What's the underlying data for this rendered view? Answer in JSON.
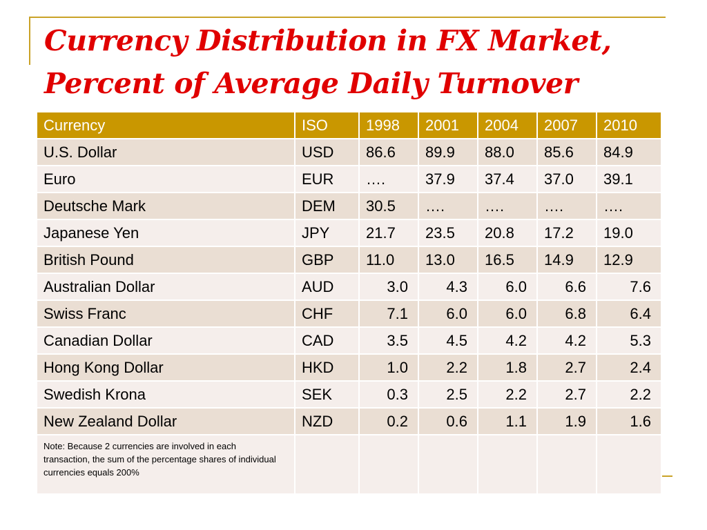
{
  "slide": {
    "title_line1": "Currency Distribution in FX Market,",
    "title_line2": "Percent of Average Daily Turnover",
    "accent_color": "#c99700",
    "title_color": "#e00000"
  },
  "table": {
    "headers": [
      "Currency",
      "ISO",
      "1998",
      "2001",
      "2004",
      "2007",
      "2010"
    ],
    "rows": [
      [
        "U.S. Dollar",
        "USD",
        "86.6",
        "89.9",
        "88.0",
        "85.6",
        "84.9"
      ],
      [
        "Euro",
        "EUR",
        "….",
        "37.9",
        "37.4",
        "37.0",
        "39.1"
      ],
      [
        "Deutsche Mark",
        "DEM",
        "30.5",
        "….",
        "….",
        "….",
        "…."
      ],
      [
        "Japanese Yen",
        "JPY",
        "21.7",
        "23.5",
        "20.8",
        "17.2",
        "19.0"
      ],
      [
        "British Pound",
        "GBP",
        "11.0",
        "13.0",
        "16.5",
        "14.9",
        "12.9"
      ],
      [
        "Australian Dollar",
        "AUD",
        "3.0",
        "4.3",
        "6.0",
        "6.6",
        "7.6"
      ],
      [
        "Swiss Franc",
        "CHF",
        "7.1",
        "6.0",
        "6.0",
        "6.8",
        "6.4"
      ],
      [
        "Canadian Dollar",
        "CAD",
        "3.5",
        "4.5",
        "4.2",
        "4.2",
        "5.3"
      ],
      [
        "Hong Kong Dollar",
        "HKD",
        "1.0",
        "2.2",
        "1.8",
        "2.7",
        "2.4"
      ],
      [
        "Swedish Krona",
        "SEK",
        "0.3",
        "2.5",
        "2.2",
        "2.7",
        "2.2"
      ],
      [
        "New Zealand Dollar",
        "NZD",
        "0.2",
        "0.6",
        "1.1",
        "1.9",
        "1.6"
      ]
    ],
    "note": "Note:  Because 2 currencies are involved in each transaction, the sum of the percentage shares of individual currencies equals 200%"
  }
}
